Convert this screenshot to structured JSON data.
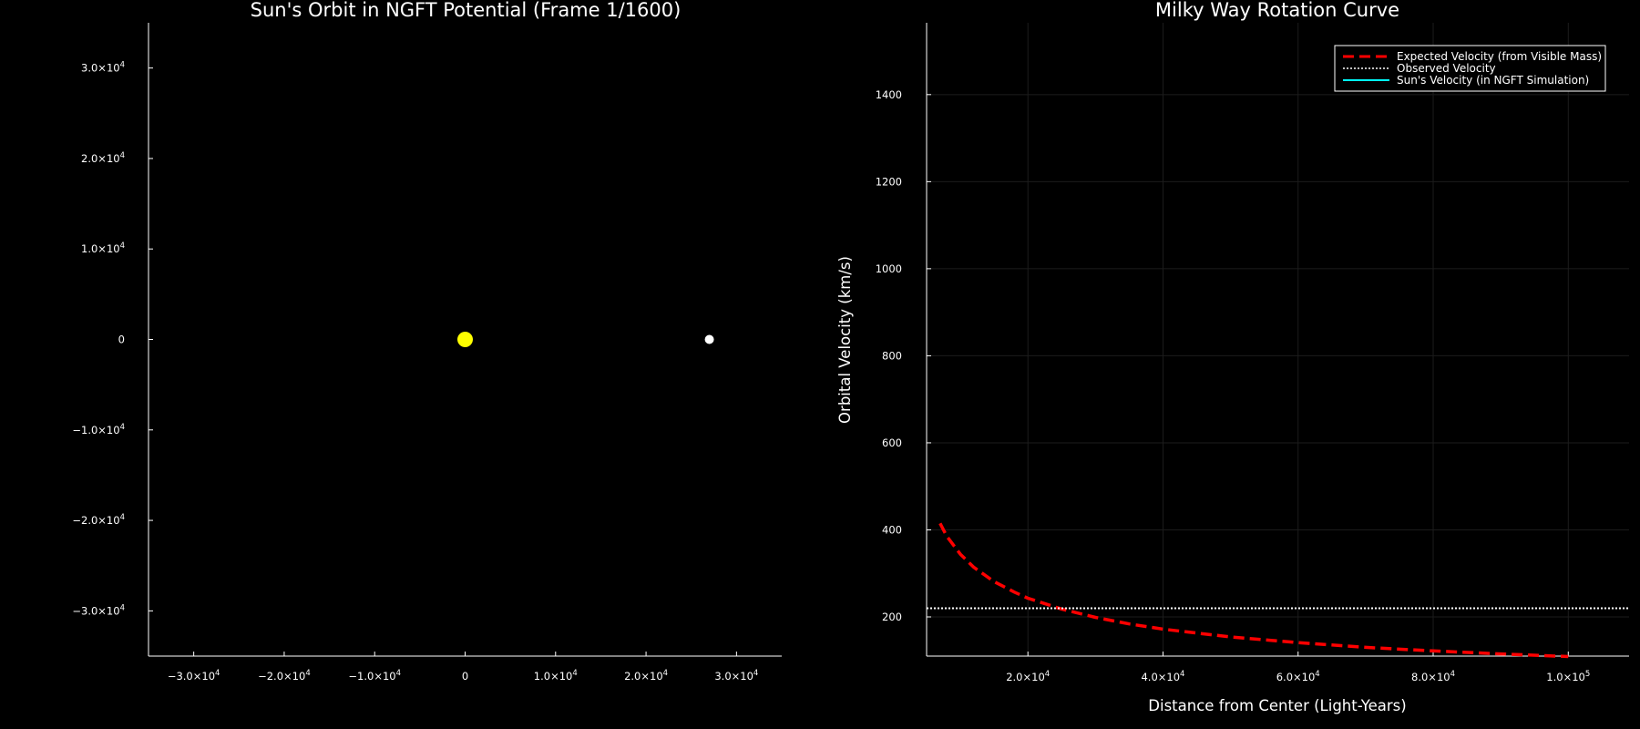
{
  "chart_data": [
    {
      "type": "scatter",
      "title": "Sun's Orbit in NGFT Potential (Frame 1/1600)",
      "xlabel": "",
      "ylabel": "",
      "xlim": [
        -35000,
        35000
      ],
      "ylim": [
        -35000,
        35000
      ],
      "grid": false,
      "x_ticks": [
        {
          "value": -30000,
          "mant": "−3.0×10",
          "exp": "4"
        },
        {
          "value": -20000,
          "mant": "−2.0×10",
          "exp": "4"
        },
        {
          "value": -10000,
          "mant": "−1.0×10",
          "exp": "4"
        },
        {
          "value": 0,
          "mant": "0",
          "exp": ""
        },
        {
          "value": 10000,
          "mant": "1.0×10",
          "exp": "4"
        },
        {
          "value": 20000,
          "mant": "2.0×10",
          "exp": "4"
        },
        {
          "value": 30000,
          "mant": "3.0×10",
          "exp": "4"
        }
      ],
      "y_ticks": [
        {
          "value": 30000,
          "mant": "3.0×10",
          "exp": "4"
        },
        {
          "value": 20000,
          "mant": "2.0×10",
          "exp": "4"
        },
        {
          "value": 10000,
          "mant": "1.0×10",
          "exp": "4"
        },
        {
          "value": 0,
          "mant": "0",
          "exp": ""
        },
        {
          "value": -10000,
          "mant": "−1.0×10",
          "exp": "4"
        },
        {
          "value": -20000,
          "mant": "−2.0×10",
          "exp": "4"
        },
        {
          "value": -30000,
          "mant": "−3.0×10",
          "exp": "4"
        }
      ],
      "points": [
        {
          "name": "galactic-center",
          "x": 0,
          "y": 0,
          "color": "#ffff00",
          "size": "large"
        },
        {
          "name": "sun",
          "x": 27000,
          "y": 0,
          "color": "#ffffff",
          "size": "small"
        }
      ]
    },
    {
      "type": "line",
      "title": "Milky Way Rotation Curve",
      "xlabel": "Distance from Center (Light-Years)",
      "ylabel": "Orbital Velocity (km/s)",
      "xlim": [
        5000,
        109000
      ],
      "ylim": [
        110,
        1565
      ],
      "grid": true,
      "legend_position": "top-right",
      "x_ticks": [
        {
          "value": 20000,
          "mant": "2.0×10",
          "exp": "4"
        },
        {
          "value": 40000,
          "mant": "4.0×10",
          "exp": "4"
        },
        {
          "value": 60000,
          "mant": "6.0×10",
          "exp": "4"
        },
        {
          "value": 80000,
          "mant": "8.0×10",
          "exp": "4"
        },
        {
          "value": 100000,
          "mant": "1.0×10",
          "exp": "5"
        }
      ],
      "y_ticks": [
        {
          "value": 200,
          "label": "200"
        },
        {
          "value": 400,
          "label": "400"
        },
        {
          "value": 600,
          "label": "600"
        },
        {
          "value": 800,
          "label": "800"
        },
        {
          "value": 1000,
          "label": "1000"
        },
        {
          "value": 1200,
          "label": "1200"
        },
        {
          "value": 1400,
          "label": "1400"
        }
      ],
      "series": [
        {
          "name": "Expected Velocity (from Visible Mass)",
          "color": "#ff0000",
          "style": "dashed",
          "x": [
            7000,
            8000,
            10000,
            12000,
            15000,
            18000,
            20000,
            25000,
            30000,
            35000,
            40000,
            50000,
            60000,
            70000,
            80000,
            90000,
            100000
          ],
          "y": [
            415,
            385,
            344,
            314,
            281,
            257,
            243,
            218,
            199,
            184,
            172,
            154,
            141,
            130,
            122,
            115,
            109
          ]
        },
        {
          "name": "Observed Velocity",
          "color": "#ffffff",
          "style": "dotted",
          "x": [
            5000,
            109000
          ],
          "y": [
            220,
            220
          ]
        },
        {
          "name": "Sun's Velocity (in NGFT Simulation)",
          "color": "#00ffff",
          "style": "solid",
          "x": [],
          "y": []
        }
      ]
    }
  ]
}
